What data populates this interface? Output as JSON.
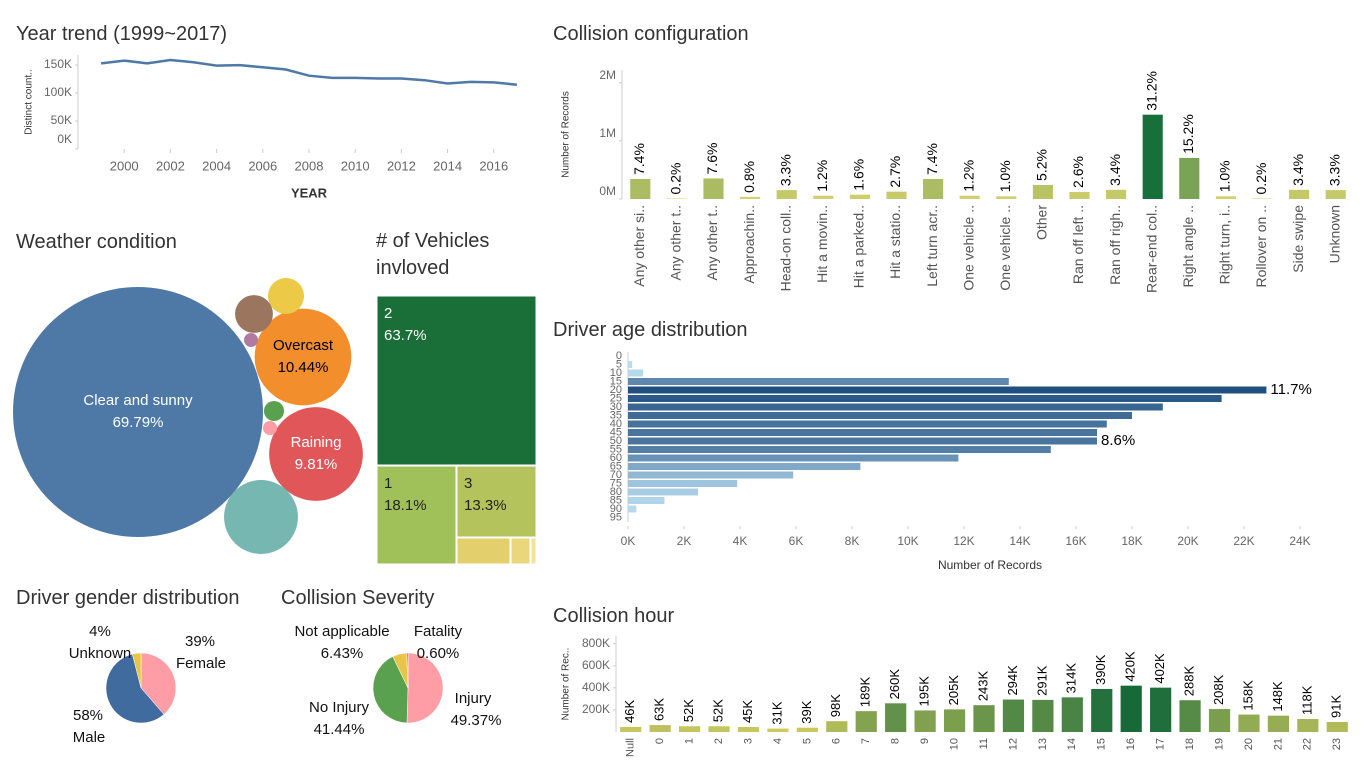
{
  "chart_data": [
    {
      "type": "line",
      "title": "Year trend (1999~2017)",
      "x_label": "YEAR",
      "y_label": "Distinct count..",
      "x": [
        1999,
        2000,
        2001,
        2002,
        2003,
        2004,
        2005,
        2006,
        2007,
        2008,
        2009,
        2010,
        2011,
        2012,
        2013,
        2014,
        2015,
        2016,
        2017
      ],
      "values": [
        153000,
        158000,
        153000,
        159000,
        155000,
        149000,
        150000,
        146000,
        142000,
        131000,
        127000,
        127000,
        126000,
        126000,
        123000,
        117000,
        120000,
        119000,
        115000
      ],
      "color": "#4e79a7",
      "xlim": [
        1998,
        2018
      ],
      "xticks": [
        2000,
        2002,
        2004,
        2006,
        2008,
        2010,
        2012,
        2014,
        2016
      ],
      "ylim": [
        0,
        168000
      ],
      "yticks": [
        {
          "value": 0,
          "label": "0K"
        },
        {
          "value": 50000,
          "label": "50K"
        },
        {
          "value": 100000,
          "label": "100K"
        },
        {
          "value": 150000,
          "label": "150K"
        }
      ],
      "grid": false
    },
    {
      "type": "bar",
      "title": "Collision configuration",
      "y_label": "Number of Records",
      "categories": [
        "Any other si..",
        "Any other t..",
        "Any other t..",
        "Approachin..",
        "Head-on coll..",
        "Hit a movin..",
        "Hit a parked..",
        "Hit a statio..",
        "Left turn acr..",
        "One vehicle ..",
        "One vehicle ..",
        "Other",
        "Ran off left ..",
        "Ran off righ..",
        "Rear-end col..",
        "Right angle ..",
        "Right turn, i..",
        "Rollover on ..",
        "Side swipe",
        "Unknown"
      ],
      "values": [
        344000,
        9000,
        353000,
        37000,
        153000,
        56000,
        74000,
        126000,
        344000,
        56000,
        47000,
        242000,
        121000,
        158000,
        1451000,
        707000,
        47000,
        9000,
        158000,
        153000
      ],
      "value_labels": [
        "7.4%",
        "0.2%",
        "7.6%",
        "0.8%",
        "3.3%",
        "1.2%",
        "1.6%",
        "2.7%",
        "7.4%",
        "1.2%",
        "1.0%",
        "5.2%",
        "2.6%",
        "3.4%",
        "31.2%",
        "15.2%",
        "1.0%",
        "0.2%",
        "3.4%",
        "3.3%"
      ],
      "color_scale": [
        "#d9d36e",
        "#17703a"
      ],
      "ylim": [
        0,
        2220000
      ],
      "yticks": [
        {
          "value": 0,
          "label": "0M"
        },
        {
          "value": 1000000,
          "label": "1M"
        },
        {
          "value": 2000000,
          "label": "2M"
        }
      ],
      "grid": false
    },
    {
      "type": "bubble",
      "title": "Weather condition",
      "categories": [
        "Clear and sunny",
        "Overcast",
        "Raining",
        null,
        null,
        null,
        null,
        null,
        null
      ],
      "values": [
        69.79,
        10.44,
        9.81,
        6.1,
        1.45,
        1.6,
        0.45,
        0.22,
        0.22
      ],
      "value_labels": [
        "69.79%",
        "10.44%",
        "9.81%",
        null,
        null,
        null,
        null,
        null,
        null
      ],
      "colors": [
        "#4e79a7",
        "#f28e2b",
        "#e15759",
        "#76b7b2",
        "#edc948",
        "#9c755f",
        "#59a14f",
        "#ff9da7",
        "#b07aa1"
      ]
    },
    {
      "type": "treemap",
      "title": "# of Vehicles invloved",
      "categories": [
        "2",
        "1",
        "3",
        null,
        null,
        null
      ],
      "values": [
        63.7,
        18.1,
        13.3,
        3.5,
        0.9,
        0.5
      ],
      "value_labels": [
        "63.7%",
        "18.1%",
        "13.3%",
        null,
        null,
        null
      ],
      "colors": [
        "#1a6e38",
        "#a0c05a",
        "#b4c35c",
        "#e3cf6b",
        "#ead77c",
        "#f1e49a"
      ]
    },
    {
      "type": "bar",
      "orientation": "horizontal",
      "title": "Driver age distribution",
      "x_label": "Number of Records",
      "categories": [
        "0",
        "5",
        "10",
        "15",
        "20",
        "25",
        "30",
        "35",
        "40",
        "45",
        "50",
        "55",
        "60",
        "65",
        "70",
        "75",
        "80",
        "85",
        "90",
        "95"
      ],
      "values": [
        0,
        150,
        540,
        13600,
        22800,
        21200,
        19100,
        18000,
        17100,
        16750,
        16750,
        15100,
        11800,
        8300,
        5900,
        3900,
        2500,
        1300,
        300,
        0
      ],
      "value_labels": [
        null,
        null,
        null,
        null,
        "11.7%",
        null,
        null,
        null,
        null,
        null,
        "8.6%",
        null,
        null,
        null,
        null,
        null,
        null,
        null,
        null,
        null
      ],
      "color_scale": [
        "#b9dcf0",
        "#1f4e7f"
      ],
      "xlim": [
        0,
        25500
      ],
      "xticks": [
        {
          "value": 0,
          "label": "0K"
        },
        {
          "value": 2000,
          "label": "2K"
        },
        {
          "value": 4000,
          "label": "4K"
        },
        {
          "value": 6000,
          "label": "6K"
        },
        {
          "value": 8000,
          "label": "8K"
        },
        {
          "value": 10000,
          "label": "10K"
        },
        {
          "value": 12000,
          "label": "12K"
        },
        {
          "value": 14000,
          "label": "14K"
        },
        {
          "value": 16000,
          "label": "16K"
        },
        {
          "value": 18000,
          "label": "18K"
        },
        {
          "value": 20000,
          "label": "20K"
        },
        {
          "value": 22000,
          "label": "22K"
        },
        {
          "value": 24000,
          "label": "24K"
        }
      ],
      "grid": false
    },
    {
      "type": "pie",
      "title": "Driver gender distribution",
      "categories": [
        "Female",
        "Male",
        "Unknown"
      ],
      "values": [
        39,
        58,
        4
      ],
      "value_labels": [
        "39%",
        "58%",
        "4%"
      ],
      "colors": [
        "#ff9da7",
        "#3f6b9f",
        "#e8c547"
      ]
    },
    {
      "type": "pie",
      "title": "Collision Severity",
      "categories": [
        "Injury",
        "No Injury",
        "Not applicable",
        "Fatality"
      ],
      "values": [
        49.37,
        41.44,
        6.43,
        0.6
      ],
      "value_labels": [
        "49.37%",
        "41.44%",
        "6.43%",
        "0.60%"
      ],
      "colors": [
        "#ff9da7",
        "#59a14f",
        "#e8c547",
        "#e15759"
      ]
    },
    {
      "type": "bar",
      "title": "Collision hour",
      "y_label": "Number of Rec..",
      "categories": [
        "Null",
        "0",
        "1",
        "2",
        "3",
        "4",
        "5",
        "6",
        "7",
        "8",
        "9",
        "10",
        "11",
        "12",
        "13",
        "14",
        "15",
        "16",
        "17",
        "18",
        "19",
        "20",
        "21",
        "22",
        "23"
      ],
      "values": [
        46000,
        63000,
        52000,
        52000,
        45000,
        31000,
        39000,
        98000,
        189000,
        260000,
        195000,
        205000,
        243000,
        294000,
        291000,
        314000,
        390000,
        420000,
        402000,
        288000,
        208000,
        158000,
        148000,
        118000,
        91000
      ],
      "value_labels": [
        "46K",
        "63K",
        "52K",
        "52K",
        "45K",
        "31K",
        "39K",
        "98K",
        "189K",
        "260K",
        "195K",
        "205K",
        "243K",
        "294K",
        "291K",
        "314K",
        "390K",
        "420K",
        "402K",
        "288K",
        "208K",
        "158K",
        "148K",
        "118K",
        "91K"
      ],
      "color_scale": [
        "#ddd262",
        "#17693a"
      ],
      "ylim": [
        0,
        870000
      ],
      "yticks": [
        {
          "value": 200000,
          "label": "200K"
        },
        {
          "value": 400000,
          "label": "400K"
        },
        {
          "value": 600000,
          "label": "600K"
        },
        {
          "value": 800000,
          "label": "800K"
        }
      ],
      "grid": false
    }
  ]
}
